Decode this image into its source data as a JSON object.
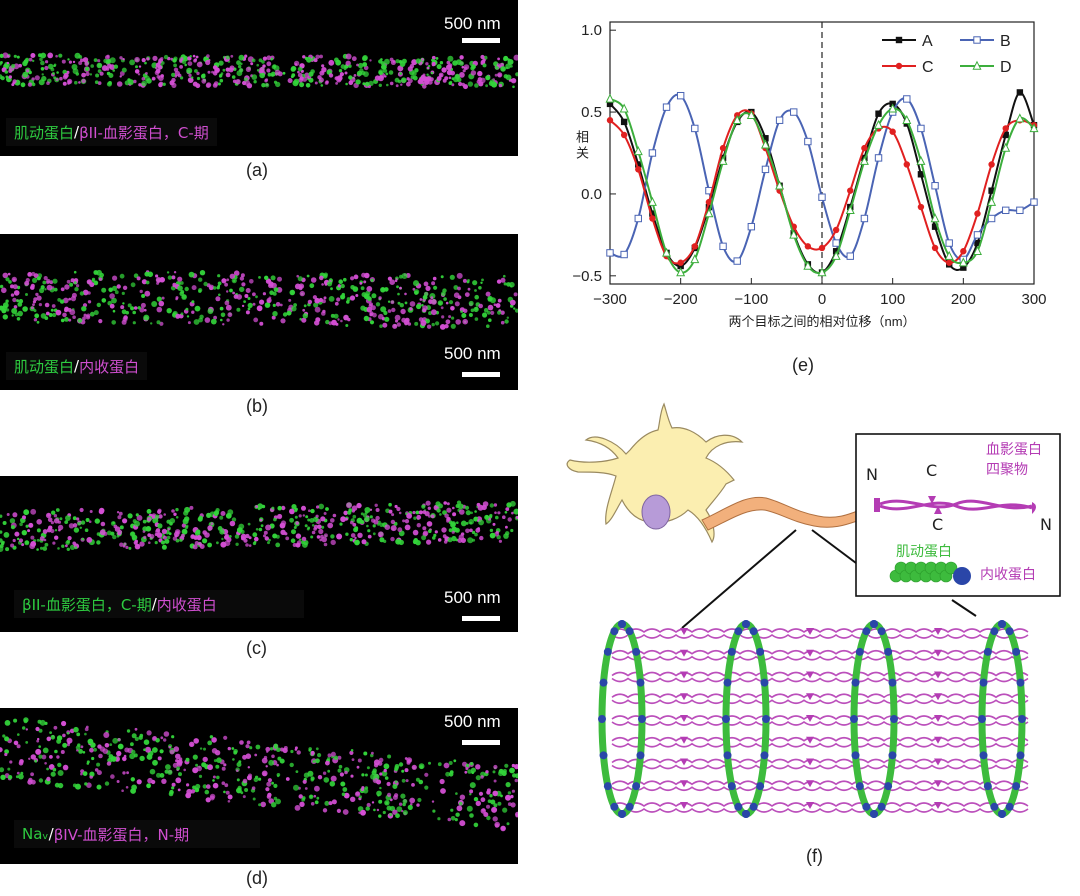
{
  "panels": [
    {
      "label": "(a)",
      "scalebar": "500 nm",
      "caption": {
        "green": "肌动蛋白",
        "sep": "/",
        "magenta": "βII-血影蛋白，C-期"
      }
    },
    {
      "label": "(b)",
      "scalebar": "500 nm",
      "caption": {
        "green": "肌动蛋白",
        "sep": "/",
        "magenta": "内收蛋白"
      }
    },
    {
      "label": "(c)",
      "scalebar": "500 nm",
      "caption": {
        "green": "βII-血影蛋白，C-期",
        "sep": "/",
        "magenta": "内收蛋白"
      }
    },
    {
      "label": "(d)",
      "scalebar": "500 nm",
      "caption": {
        "green": "Naᵥ",
        "sep": "/",
        "magenta": "βIV-血影蛋白，N-期"
      }
    }
  ],
  "chart": {
    "label": "(e)",
    "colors": {
      "A": "#111111",
      "B": "#4a64b4",
      "C": "#e02020",
      "D": "#3cae3c"
    },
    "markers": {
      "A": "square-filled",
      "B": "square-open",
      "C": "circle-filled",
      "D": "triangle-open"
    }
  },
  "chart_data": {
    "type": "line",
    "xlabel": "两个目标之间的相对位移（nm）",
    "ylabel": "相关",
    "xlim": [
      -300,
      300
    ],
    "ylim": [
      -0.55,
      1.05
    ],
    "xticks": [
      "−300",
      "−200",
      "−100",
      "0",
      "100",
      "200",
      "300"
    ],
    "xtick_values": [
      -300,
      -200,
      -100,
      0,
      100,
      200,
      300
    ],
    "yticks": [
      "−0.5",
      "0.0",
      "0.5",
      "1.0"
    ],
    "ytick_values": [
      -0.5,
      0,
      0.5,
      1.0
    ],
    "vline": 0,
    "legend_position": "top-right",
    "x": [
      -300,
      -280,
      -260,
      -240,
      -220,
      -200,
      -180,
      -160,
      -140,
      -120,
      -100,
      -80,
      -60,
      -40,
      -20,
      0,
      20,
      40,
      60,
      80,
      100,
      120,
      140,
      160,
      180,
      200,
      220,
      240,
      260,
      280,
      300
    ],
    "series": [
      {
        "name": "A",
        "values": [
          0.55,
          0.44,
          0.18,
          -0.12,
          -0.36,
          -0.44,
          -0.33,
          -0.08,
          0.22,
          0.44,
          0.5,
          0.34,
          0.05,
          -0.24,
          -0.43,
          -0.48,
          -0.35,
          -0.08,
          0.22,
          0.49,
          0.55,
          0.43,
          0.12,
          -0.2,
          -0.43,
          -0.45,
          -0.3,
          0.02,
          0.36,
          0.62,
          0.42
        ]
      },
      {
        "name": "B",
        "values": [
          -0.36,
          -0.37,
          -0.15,
          0.25,
          0.53,
          0.6,
          0.4,
          0.02,
          -0.32,
          -0.41,
          -0.2,
          0.15,
          0.45,
          0.5,
          0.32,
          -0.02,
          -0.3,
          -0.38,
          -0.15,
          0.22,
          0.5,
          0.58,
          0.4,
          0.05,
          -0.3,
          -0.4,
          -0.25,
          -0.15,
          -0.1,
          -0.1,
          -0.05
        ]
      },
      {
        "name": "C",
        "values": [
          0.45,
          0.36,
          0.15,
          -0.15,
          -0.38,
          -0.42,
          -0.32,
          -0.05,
          0.28,
          0.48,
          0.49,
          0.28,
          0.02,
          -0.2,
          -0.32,
          -0.33,
          -0.22,
          0.02,
          0.28,
          0.4,
          0.38,
          0.18,
          -0.08,
          -0.33,
          -0.42,
          -0.35,
          -0.12,
          0.18,
          0.4,
          0.45,
          0.42
        ]
      },
      {
        "name": "D",
        "values": [
          0.58,
          0.52,
          0.26,
          -0.05,
          -0.36,
          -0.48,
          -0.4,
          -0.12,
          0.2,
          0.45,
          0.48,
          0.3,
          0.05,
          -0.25,
          -0.44,
          -0.48,
          -0.38,
          -0.1,
          0.2,
          0.42,
          0.52,
          0.45,
          0.2,
          -0.15,
          -0.38,
          -0.42,
          -0.35,
          -0.05,
          0.28,
          0.46,
          0.4
        ]
      }
    ]
  },
  "diagram": {
    "label": "(f)",
    "legend_box": {
      "spectrin_label": "血影蛋白\n四聚物",
      "actin_label": "肌动蛋白",
      "adducin_label": "内收蛋白",
      "end_labels": [
        "N",
        "C",
        "C",
        "N"
      ]
    },
    "colors": {
      "neuron": "#fbeeb0",
      "neuron_stroke": "#9a8a60",
      "nucleus": "#b79bd8",
      "axon": "#f2b07c",
      "spectrin": "#b43cb4",
      "actin": "#3dbb3d",
      "adducin": "#2a46a8"
    }
  }
}
